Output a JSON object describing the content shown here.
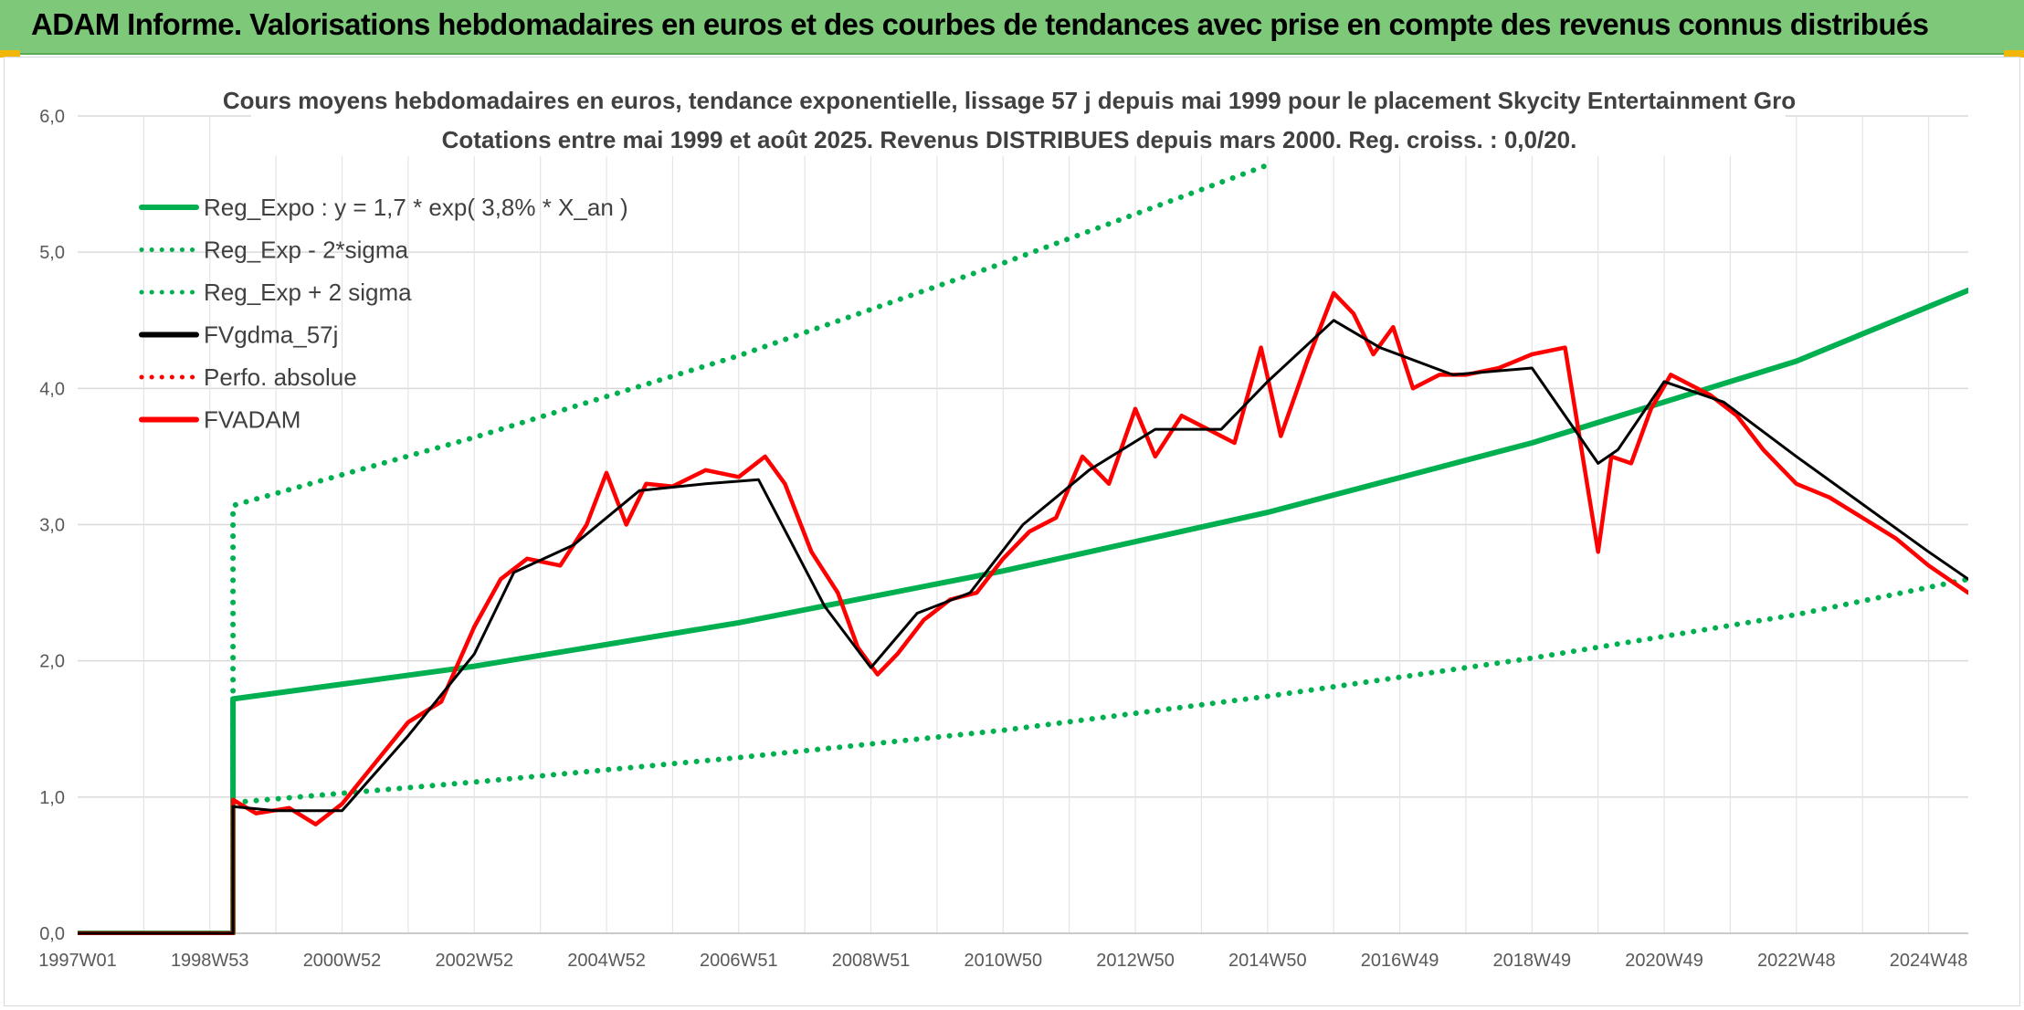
{
  "banner": {
    "title": "ADAM Informe. Valorisations hebdomadaires en euros et des courbes de tendances avec prise en compte des revenus connus distribués"
  },
  "chart_data": {
    "type": "line",
    "title": "Cours moyens hebdomadaires en euros, tendance exponentielle, lissage 57 j depuis mai 1999 pour le placement Skycity Entertainment Gro",
    "subtitle": "Cotations entre mai 1999 et août 2025. Revenus DISTRIBUES depuis mars 2000. Reg. croiss. : 0,0/20.",
    "xlabel": "",
    "ylabel": "",
    "ylim": [
      0,
      6
    ],
    "y_ticks": [
      "0,0",
      "1,0",
      "2,0",
      "3,0",
      "4,0",
      "5,0",
      "6,0"
    ],
    "x_range": [
      1997.0,
      2025.6
    ],
    "x_ticks": [
      {
        "label": "1997W01",
        "x": 1997.0
      },
      {
        "label": "1998W53",
        "x": 1999.0
      },
      {
        "label": "2000W52",
        "x": 2001.0
      },
      {
        "label": "2002W52",
        "x": 2003.0
      },
      {
        "label": "2004W52",
        "x": 2005.0
      },
      {
        "label": "2006W51",
        "x": 2007.0
      },
      {
        "label": "2008W51",
        "x": 2009.0
      },
      {
        "label": "2010W50",
        "x": 2011.0
      },
      {
        "label": "2012W50",
        "x": 2013.0
      },
      {
        "label": "2014W50",
        "x": 2015.0
      },
      {
        "label": "2016W49",
        "x": 2017.0
      },
      {
        "label": "2018W49",
        "x": 2019.0
      },
      {
        "label": "2020W49",
        "x": 2021.0
      },
      {
        "label": "2022W48",
        "x": 2023.0
      },
      {
        "label": "2024W48",
        "x": 2025.0
      }
    ],
    "grid": true,
    "legend_position": "top-left",
    "series": [
      {
        "name": "Reg_Expo : y = 1,7 * exp( 3,8% *  X_an )",
        "color": "#00b050",
        "style": "solid",
        "x": [
          1997.0,
          1999.35,
          1999.35,
          2003,
          2007,
          2011,
          2015,
          2019,
          2023,
          2025.6
        ],
        "y": [
          0,
          0,
          1.72,
          1.96,
          2.28,
          2.66,
          3.09,
          3.6,
          4.2,
          4.72
        ]
      },
      {
        "name": "Reg_Exp - 2*sigma",
        "color": "#00b050",
        "style": "dotted",
        "x": [
          1997.0,
          1999.35,
          1999.35,
          2003,
          2007,
          2011,
          2015,
          2019,
          2023,
          2025.6
        ],
        "y": [
          0,
          0,
          0.96,
          1.11,
          1.29,
          1.49,
          1.74,
          2.02,
          2.34,
          2.6
        ]
      },
      {
        "name": "Reg_Exp + 2 sigma",
        "color": "#00b050",
        "style": "dotted",
        "x": [
          1997.0,
          1999.35,
          1999.35,
          2003,
          2007,
          2011,
          2015
        ],
        "y": [
          0,
          0,
          3.14,
          3.64,
          4.24,
          4.92,
          5.64
        ]
      },
      {
        "name": "FVgdma_57j",
        "color": "#000000",
        "style": "solid",
        "x": [
          1997.0,
          1999.35,
          1999.35,
          2000.0,
          2001.0,
          2002.0,
          2003.0,
          2003.6,
          2004.5,
          2005.5,
          2006.5,
          2007.3,
          2008.3,
          2009.0,
          2009.7,
          2010.5,
          2011.3,
          2012.3,
          2013.3,
          2014.3,
          2015.0,
          2016.0,
          2016.7,
          2017.8,
          2019.0,
          2020.0,
          2020.3,
          2021.0,
          2021.9,
          2023.0,
          2024.0,
          2025.0,
          2025.6
        ],
        "y": [
          0,
          0,
          0.93,
          0.9,
          0.9,
          1.45,
          2.05,
          2.65,
          2.85,
          3.25,
          3.3,
          3.33,
          2.4,
          1.95,
          2.35,
          2.5,
          3.0,
          3.4,
          3.7,
          3.7,
          4.05,
          4.5,
          4.3,
          4.1,
          4.15,
          3.45,
          3.55,
          4.05,
          3.9,
          3.5,
          3.15,
          2.8,
          2.6
        ]
      },
      {
        "name": "Perfo. absolue",
        "color": "#ff0000",
        "style": "dotted",
        "x": [],
        "y": []
      },
      {
        "name": "FVADAM",
        "color": "#ff0000",
        "style": "solid",
        "x": [
          1997.0,
          1999.35,
          1999.35,
          1999.7,
          2000.2,
          2000.6,
          2001.0,
          2001.5,
          2002.0,
          2002.5,
          2003.0,
          2003.4,
          2003.8,
          2004.3,
          2004.7,
          2005.0,
          2005.3,
          2005.6,
          2006.0,
          2006.5,
          2007.0,
          2007.4,
          2007.7,
          2008.1,
          2008.5,
          2008.8,
          2009.1,
          2009.4,
          2009.8,
          2010.2,
          2010.6,
          2011.0,
          2011.4,
          2011.8,
          2012.2,
          2012.6,
          2013.0,
          2013.3,
          2013.7,
          2014.1,
          2014.5,
          2014.9,
          2015.2,
          2015.6,
          2016.0,
          2016.3,
          2016.6,
          2016.9,
          2017.2,
          2017.6,
          2018.0,
          2018.5,
          2019.0,
          2019.5,
          2020.0,
          2020.2,
          2020.5,
          2020.8,
          2021.1,
          2021.3,
          2021.7,
          2022.1,
          2022.5,
          2023.0,
          2023.5,
          2024.0,
          2024.5,
          2025.0,
          2025.6
        ],
        "y": [
          0,
          0,
          0.98,
          0.88,
          0.92,
          0.8,
          0.95,
          1.25,
          1.55,
          1.7,
          2.25,
          2.6,
          2.75,
          2.7,
          3.0,
          3.38,
          3.0,
          3.3,
          3.28,
          3.4,
          3.35,
          3.5,
          3.3,
          2.8,
          2.5,
          2.1,
          1.9,
          2.05,
          2.3,
          2.45,
          2.5,
          2.75,
          2.95,
          3.05,
          3.5,
          3.3,
          3.85,
          3.5,
          3.8,
          3.7,
          3.6,
          4.3,
          3.65,
          4.2,
          4.7,
          4.55,
          4.25,
          4.45,
          4.0,
          4.1,
          4.1,
          4.15,
          4.25,
          4.3,
          2.8,
          3.5,
          3.45,
          3.85,
          4.1,
          4.05,
          3.95,
          3.8,
          3.55,
          3.3,
          3.2,
          3.05,
          2.9,
          2.7,
          2.5
        ]
      }
    ]
  }
}
